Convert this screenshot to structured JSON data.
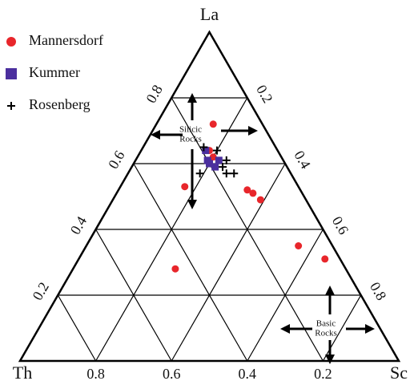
{
  "chart_data": {
    "type": "ternary",
    "axes": [
      {
        "name": "La",
        "ticks": [
          0.2,
          0.4,
          0.6,
          0.8
        ]
      },
      {
        "name": "Th",
        "ticks": [
          0.2,
          0.4,
          0.6,
          0.8
        ]
      },
      {
        "name": "Sc",
        "ticks": [
          0.2,
          0.4,
          0.6,
          0.8
        ]
      }
    ],
    "grid": true,
    "legend": "top-left",
    "series": [
      {
        "name": "Mannersdorf",
        "color": "#e8262b",
        "marker": "circle",
        "la": [
          0.72,
          0.53,
          0.52,
          0.51,
          0.49,
          0.35,
          0.31,
          0.28,
          0.64,
          0.62
        ],
        "sc": [
          0.15,
          0.17,
          0.34,
          0.36,
          0.39,
          0.56,
          0.65,
          0.27,
          0.18,
          0.2
        ],
        "th": [
          0.13,
          0.3,
          0.14,
          0.13,
          0.12,
          0.09,
          0.04,
          0.45,
          0.18,
          0.18
        ]
      },
      {
        "name": "Kummer",
        "color": "#4b2f9e",
        "marker": "square",
        "la": [
          0.64,
          0.61,
          0.59,
          0.61,
          0.6
        ],
        "sc": [
          0.17,
          0.19,
          0.22,
          0.22,
          0.2
        ],
        "th": [
          0.19,
          0.2,
          0.19,
          0.17,
          0.2
        ]
      },
      {
        "name": "Rosenberg",
        "color": "#000000",
        "marker": "plus",
        "la": [
          0.65,
          0.64,
          0.61,
          0.59,
          0.57,
          0.57,
          0.57
        ],
        "sc": [
          0.16,
          0.2,
          0.24,
          0.24,
          0.26,
          0.28,
          0.19
        ],
        "th": [
          0.19,
          0.16,
          0.15,
          0.17,
          0.17,
          0.15,
          0.24
        ]
      }
    ],
    "annotations": [
      {
        "lines": [
          "Silicic",
          "Rocks"
        ]
      },
      {
        "lines": [
          "Basic",
          "Rocks"
        ]
      }
    ]
  }
}
